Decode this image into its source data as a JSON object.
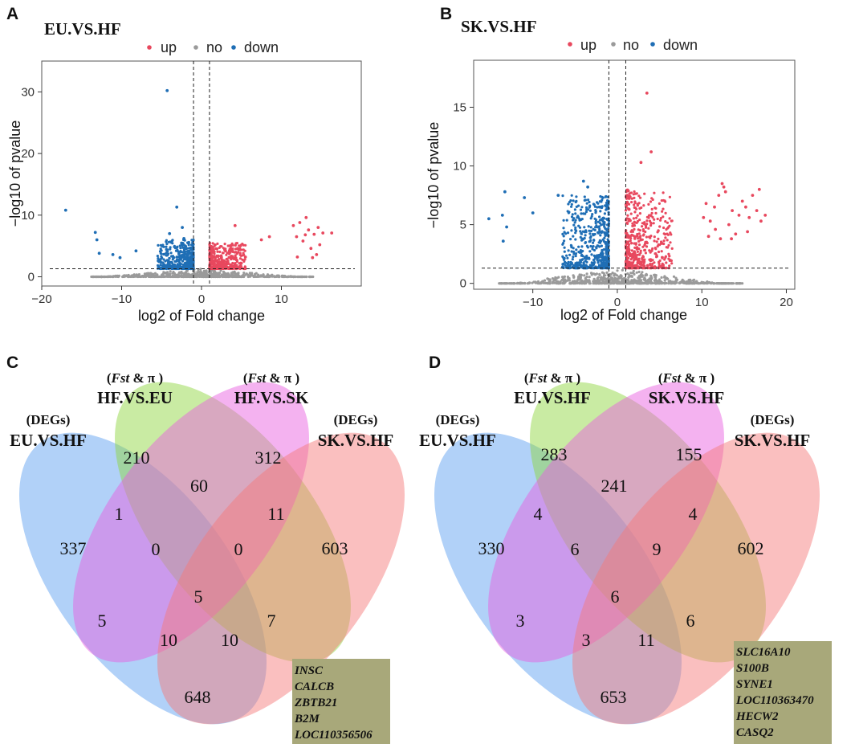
{
  "panels": [
    "A",
    "B",
    "C",
    "D"
  ],
  "chart_data": [
    {
      "type": "scatter",
      "panel": "A",
      "title": "EU.VS.HF",
      "xlabel": "log2 of Fold change",
      "ylabel": "−log10 of pvalue",
      "xlim": [
        -20,
        20
      ],
      "ylim": [
        -1.5,
        35
      ],
      "xticks": [
        -20,
        -10,
        0,
        10
      ],
      "yticks": [
        0,
        10,
        20,
        30
      ],
      "threshold_x": [
        -1,
        1
      ],
      "threshold_y": 1.3,
      "legend": [
        {
          "name": "up",
          "color": "#e8485e"
        },
        {
          "name": "no",
          "color": "#9a9a9a"
        },
        {
          "name": "down",
          "color": "#1f6eb5"
        }
      ],
      "series": [
        {
          "name": "up",
          "color": "#e8485e",
          "points": [
            [
              11.5,
              8.3
            ],
            [
              11.9,
              6.5
            ],
            [
              12.3,
              8.8
            ],
            [
              12.7,
              5.8
            ],
            [
              13.1,
              9.6
            ],
            [
              13.4,
              7.6
            ],
            [
              13.7,
              4.6
            ],
            [
              14.1,
              6.9
            ],
            [
              14.4,
              3.6
            ],
            [
              14.8,
              5.2
            ],
            [
              15.2,
              7.1
            ],
            [
              12.0,
              3.2
            ],
            [
              13.9,
              3.1
            ],
            [
              16.3,
              7.1
            ],
            [
              13.0,
              6.8
            ],
            [
              14.6,
              8.0
            ],
            [
              8.5,
              6.5
            ],
            [
              7.5,
              6.0
            ],
            [
              5.5,
              3.2
            ],
            [
              4.2,
              8.3
            ],
            [
              3.0,
              4.2
            ]
          ]
        },
        {
          "name": "down",
          "color": "#1f6eb5",
          "points": [
            [
              -17.0,
              10.8
            ],
            [
              -13.3,
              7.2
            ],
            [
              -13.1,
              6.0
            ],
            [
              -12.8,
              3.8
            ],
            [
              -11.1,
              3.6
            ],
            [
              -10.2,
              3.1
            ],
            [
              -8.2,
              4.2
            ],
            [
              -4.3,
              30.2
            ],
            [
              -3.1,
              11.3
            ],
            [
              -2.4,
              8.0
            ],
            [
              -4.0,
              7.0
            ],
            [
              -2.2,
              6.2
            ]
          ]
        }
      ],
      "dense": {
        "up": {
          "count": 420,
          "xrange": [
            1.0,
            5.5
          ],
          "ymax": 5.5
        },
        "down": {
          "count": 460,
          "xrange": [
            -5.5,
            -1.0
          ],
          "ymax": 6.0
        },
        "no": {
          "count": 650,
          "xrange": [
            -14,
            14
          ],
          "ymax": 1.3
        }
      }
    },
    {
      "type": "scatter",
      "panel": "B",
      "title": "SK.VS.HF",
      "xlabel": "log2 of Fold change",
      "ylabel": "−log10 of pvalue",
      "xlim": [
        -17,
        21
      ],
      "ylim": [
        -0.5,
        19
      ],
      "xticks": [
        -10,
        0,
        10,
        20
      ],
      "yticks": [
        0,
        5,
        10,
        15
      ],
      "threshold_x": [
        -1,
        1
      ],
      "threshold_y": 1.3,
      "legend": [
        {
          "name": "up",
          "color": "#e8485e"
        },
        {
          "name": "no",
          "color": "#9a9a9a"
        },
        {
          "name": "down",
          "color": "#1f6eb5"
        }
      ],
      "series": [
        {
          "name": "up",
          "color": "#e8485e",
          "points": [
            [
              3.5,
              16.2
            ],
            [
              4.0,
              11.2
            ],
            [
              2.8,
              10.3
            ],
            [
              10.5,
              6.8
            ],
            [
              11.0,
              5.3
            ],
            [
              11.5,
              6.5
            ],
            [
              12.0,
              7.5
            ],
            [
              12.4,
              8.5
            ],
            [
              12.8,
              7.8
            ],
            [
              13.2,
              5.0
            ],
            [
              13.6,
              6.2
            ],
            [
              14.0,
              4.2
            ],
            [
              14.4,
              5.8
            ],
            [
              14.8,
              7.0
            ],
            [
              15.2,
              6.5
            ],
            [
              15.6,
              5.6
            ],
            [
              16.0,
              7.5
            ],
            [
              16.5,
              6.2
            ],
            [
              17.0,
              5.3
            ],
            [
              17.5,
              5.8
            ],
            [
              10.8,
              4.0
            ],
            [
              12.2,
              3.8
            ],
            [
              13.5,
              3.8
            ],
            [
              15.4,
              4.4
            ],
            [
              11.6,
              4.6
            ],
            [
              16.8,
              8.0
            ],
            [
              12.6,
              8.2
            ],
            [
              10.2,
              5.6
            ]
          ]
        },
        {
          "name": "down",
          "color": "#1f6eb5",
          "points": [
            [
              -15.2,
              5.5
            ],
            [
              -13.3,
              7.8
            ],
            [
              -13.6,
              5.8
            ],
            [
              -13.1,
              4.8
            ],
            [
              -13.5,
              3.6
            ],
            [
              -11.0,
              7.3
            ],
            [
              -10.0,
              6.0
            ],
            [
              -7.0,
              7.5
            ],
            [
              -4.0,
              8.7
            ],
            [
              -3.5,
              8.2
            ]
          ]
        }
      ],
      "dense": {
        "up": {
          "count": 520,
          "xrange": [
            1.0,
            6.5
          ],
          "ymax": 8.0
        },
        "down": {
          "count": 560,
          "xrange": [
            -6.5,
            -1.0
          ],
          "ymax": 7.5
        },
        "no": {
          "count": 700,
          "xrange": [
            -14,
            15
          ],
          "ymax": 1.3
        }
      }
    },
    {
      "type": "venn",
      "panel": "C",
      "sets": [
        {
          "tag": "(DEGs)",
          "name": "EU.VS.HF",
          "color": "#5b9ef0"
        },
        {
          "tag_pre": "(",
          "tag_italic": "Fst",
          "tag_post": " & π )",
          "name": "HF.VS.EU",
          "color": "#8ed63e"
        },
        {
          "tag_pre": "(",
          "tag_italic": "Fst",
          "tag_post": " & π )",
          "name": "HF.VS.SK",
          "color": "#e95fe0"
        },
        {
          "tag": "(DEGs)",
          "name": "SK.VS.HF",
          "color": "#f47a7a"
        }
      ],
      "regions": {
        "a": "337",
        "b": "210",
        "c": "312",
        "d": "603",
        "ab": "1",
        "bc": "60",
        "cd": "11",
        "abc": "0",
        "bcd": "0",
        "abcd": "5",
        "ac": "5",
        "acd": "10",
        "abd": "10",
        "bd": "7",
        "ad": "648"
      },
      "genes": [
        "INSC",
        "CALCB",
        "ZBTB21",
        "B2M",
        "LOC110356506"
      ]
    },
    {
      "type": "venn",
      "panel": "D",
      "sets": [
        {
          "tag": "(DEGs)",
          "name": "EU.VS.HF",
          "color": "#5b9ef0"
        },
        {
          "tag_pre": "(",
          "tag_italic": "Fst",
          "tag_post": " & π )",
          "name": "EU.VS.HF",
          "color": "#8ed63e"
        },
        {
          "tag_pre": "(",
          "tag_italic": "Fst",
          "tag_post": " & π )",
          "name": "SK.VS.HF",
          "color": "#e95fe0"
        },
        {
          "tag": "(DEGs)",
          "name": "SK.VS.HF",
          "color": "#f47a7a"
        }
      ],
      "regions": {
        "a": "330",
        "b": "283",
        "c": "155",
        "d": "602",
        "ab": "4",
        "bc": "241",
        "cd": "4",
        "abc": "6",
        "bcd": "9",
        "abcd": "6",
        "ac": "3",
        "acd": "3",
        "abd": "11",
        "bd": "6",
        "ad": "653"
      },
      "genes": [
        "SLC16A10",
        "S100B",
        "SYNE1",
        "LOC110363470",
        "HECW2",
        "CASQ2"
      ]
    }
  ]
}
